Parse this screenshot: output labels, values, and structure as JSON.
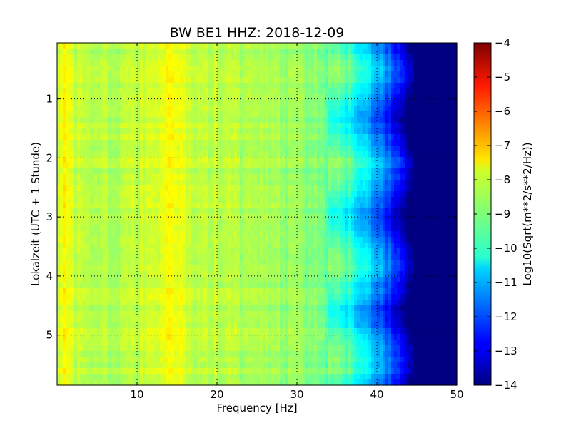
{
  "chart_data": {
    "type": "heatmap",
    "title": "BW BE1 HHZ: 2018-12-09",
    "xlabel": "Frequency [Hz]",
    "ylabel": "Lokalzeit (UTC + 1 Stunde)",
    "xlim": [
      0,
      50
    ],
    "ylim": [
      5.85,
      0.05
    ],
    "x_ticks": [
      10,
      20,
      30,
      40,
      50
    ],
    "x_tick_labels": [
      "10",
      "20",
      "30",
      "40",
      "50"
    ],
    "y_ticks": [
      1,
      2,
      3,
      4,
      5
    ],
    "y_tick_labels": [
      "1",
      "2",
      "3",
      "4",
      "5"
    ],
    "grid": true,
    "colormap": "jet",
    "colorbar": {
      "label": "Log10(Sqrt(m**2/s**2/Hz))",
      "range": [
        -14,
        -4
      ],
      "ticks": [
        -4,
        -5,
        -6,
        -7,
        -8,
        -9,
        -10,
        -11,
        -12,
        -13,
        -14
      ],
      "tick_labels": [
        "−4",
        "−5",
        "−6",
        "−7",
        "−8",
        "−9",
        "−10",
        "−11",
        "−12",
        "−13",
        "−14"
      ]
    },
    "frequency_profile": [
      {
        "hz": 0.0,
        "value": -8.2
      },
      {
        "hz": 1.0,
        "value": -7.7
      },
      {
        "hz": 2.0,
        "value": -8.2
      },
      {
        "hz": 5.0,
        "value": -8.5
      },
      {
        "hz": 10.0,
        "value": -8.4
      },
      {
        "hz": 13.5,
        "value": -7.9
      },
      {
        "hz": 14.5,
        "value": -7.8
      },
      {
        "hz": 17.0,
        "value": -8.3
      },
      {
        "hz": 20.0,
        "value": -8.4
      },
      {
        "hz": 25.0,
        "value": -8.6
      },
      {
        "hz": 30.0,
        "value": -8.8
      },
      {
        "hz": 33.0,
        "value": -9.1
      },
      {
        "hz": 35.0,
        "value": -9.5
      },
      {
        "hz": 37.0,
        "value": -10.0
      },
      {
        "hz": 39.0,
        "value": -10.8
      },
      {
        "hz": 41.0,
        "value": -11.8
      },
      {
        "hz": 42.5,
        "value": -12.6
      },
      {
        "hz": 43.5,
        "value": -13.3
      },
      {
        "hz": 44.5,
        "value": -14.0
      },
      {
        "hz": 50.0,
        "value": -14.0
      }
    ]
  }
}
